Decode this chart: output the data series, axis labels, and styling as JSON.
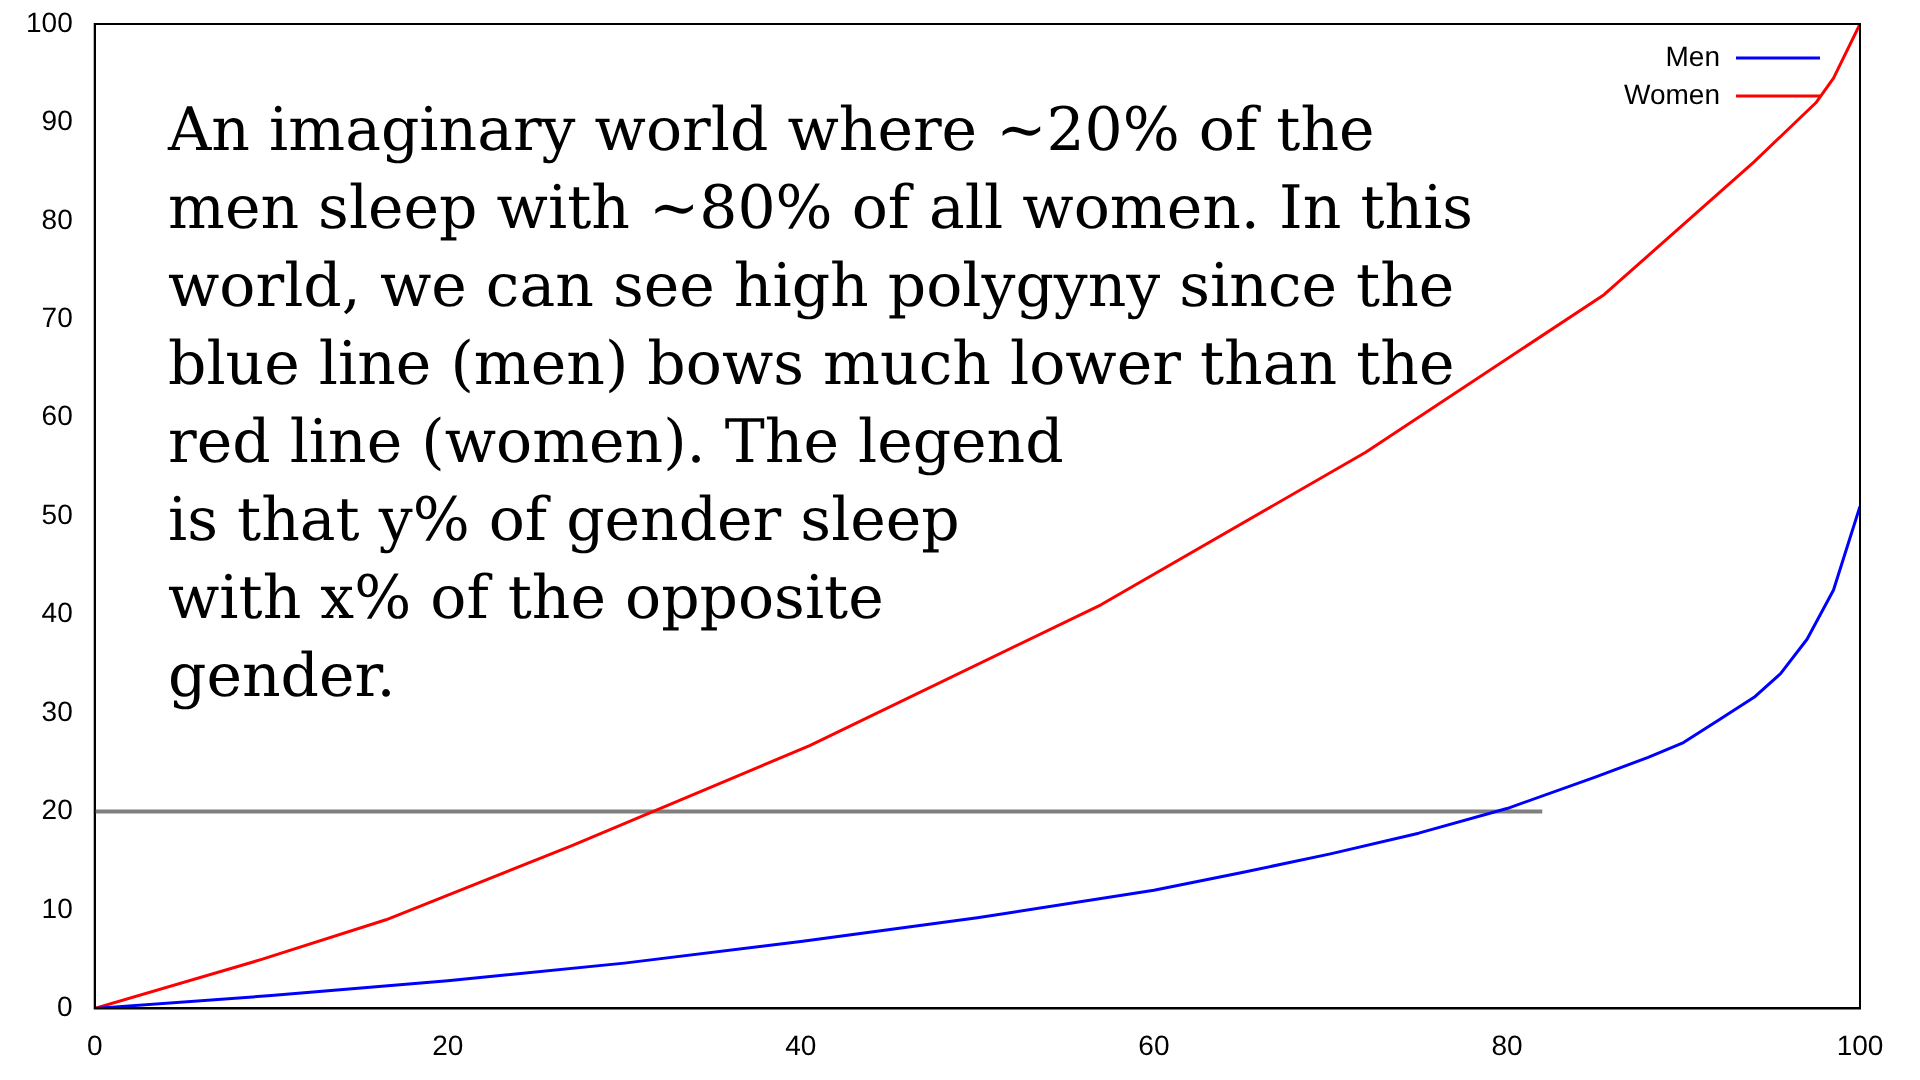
{
  "chart_data": {
    "type": "line",
    "xlim": [
      0,
      100
    ],
    "ylim": [
      0,
      100
    ],
    "xticks": [
      0,
      20,
      40,
      60,
      80,
      100
    ],
    "yticks": [
      0,
      10,
      20,
      30,
      40,
      50,
      60,
      70,
      80,
      90,
      100
    ],
    "grid": false,
    "legend": "top right",
    "marker": "none",
    "annotations": [
      "An imaginary world where ~20% of the men sleep with ~80% of all women. In this world, we can see high polygyny since the blue line (men) bows much lower than the red line (women). The legend is that y% of gender sleep with x% of the opposite gender."
    ],
    "series": [
      {
        "name": "Men",
        "color": "#0000ff",
        "x": [
          0,
          10,
          20,
          30,
          40,
          50,
          60,
          65,
          70,
          75,
          80,
          85,
          88,
          90,
          92,
          94,
          95.5,
          97,
          98.5,
          100
        ],
        "values": [
          0,
          1.3,
          2.8,
          4.6,
          6.8,
          9.2,
          12,
          13.8,
          15.7,
          17.8,
          20.3,
          23.5,
          25.5,
          27,
          29.3,
          31.6,
          34,
          37.5,
          42.5,
          51
        ]
      },
      {
        "name": "Women",
        "color": "#ff0000",
        "x": [
          0,
          9.5,
          16.5,
          27,
          40.5,
          57,
          72,
          85.5,
          94,
          97.5,
          98.5,
          100
        ],
        "values": [
          0,
          5,
          9,
          16.5,
          26.7,
          41,
          56.5,
          72.5,
          86,
          92,
          94.5,
          100
        ]
      },
      {
        "color": "#808080",
        "x": [
          0,
          82
        ],
        "values": [
          20,
          20
        ]
      }
    ]
  }
}
